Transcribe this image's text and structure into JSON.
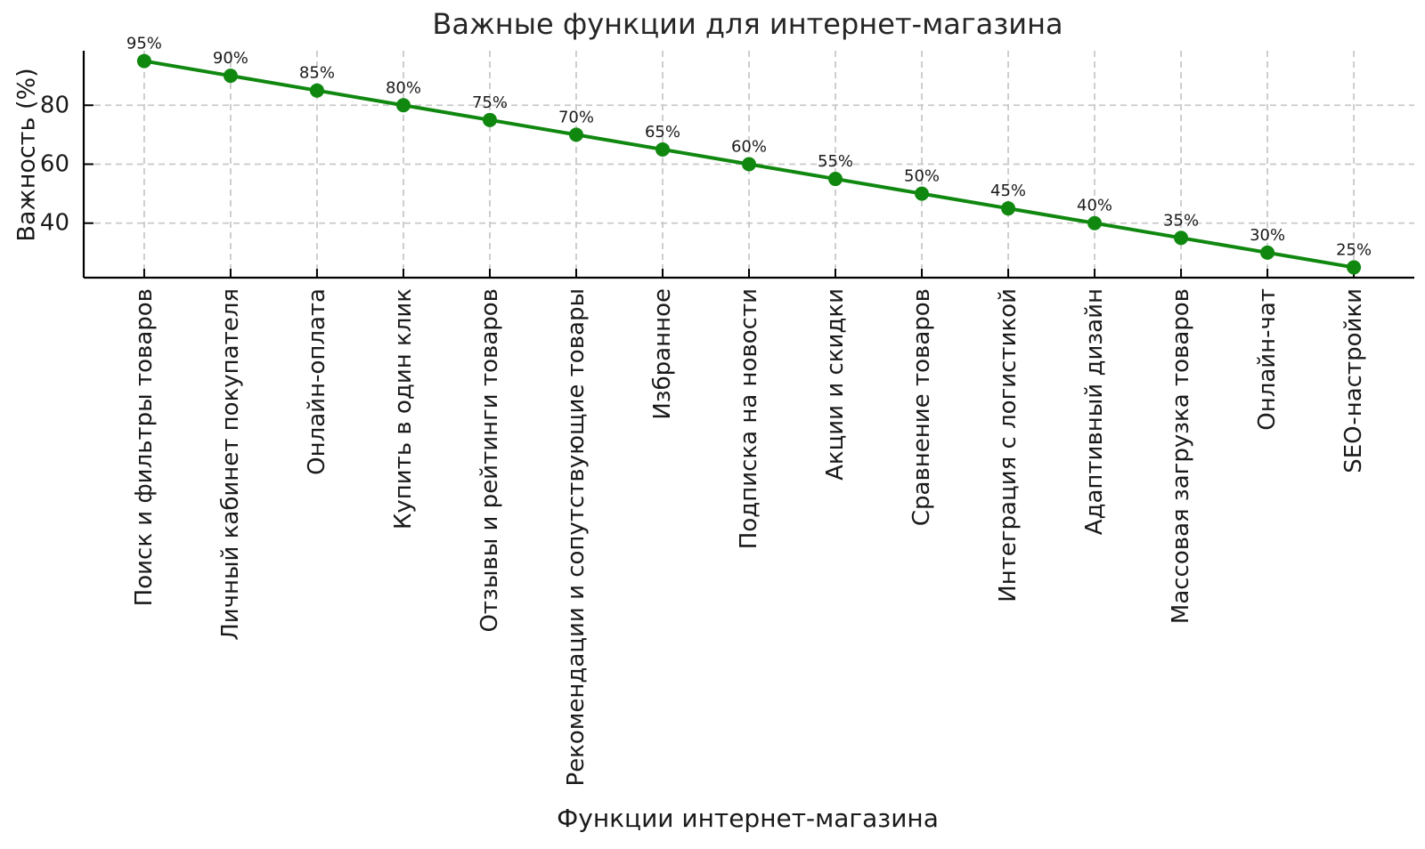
{
  "chart_data": {
    "type": "line",
    "title": "Важные функции для интернет-магазина",
    "xlabel": "Функции интернет-магазина",
    "ylabel": "Важность (%)",
    "categories": [
      "Поиск и фильтры товаров",
      "Личный кабинет покупателя",
      "Онлайн-оплата",
      "Купить в один клик",
      "Отзывы и рейтинги товаров",
      "Рекомендации и сопутствующие товары",
      "Избранное",
      "Подписка на новости",
      "Акции и скидки",
      "Сравнение товаров",
      "Интеграция с логистикой",
      "Адаптивный дизайн",
      "Массовая загрузка товаров",
      "Онлайн-чат",
      "SEO-настройки"
    ],
    "values": [
      95,
      90,
      85,
      80,
      75,
      70,
      65,
      60,
      55,
      50,
      45,
      40,
      35,
      30,
      25
    ],
    "point_labels": [
      "95%",
      "90%",
      "85%",
      "80%",
      "75%",
      "70%",
      "65%",
      "60%",
      "55%",
      "50%",
      "45%",
      "40%",
      "35%",
      "30%",
      "25%"
    ],
    "yticks": [
      40,
      60,
      80
    ],
    "ylim": [
      21.5,
      98.5
    ],
    "grid": true,
    "grid_style": "dashed",
    "legend_position": "none",
    "line_color": "#108810",
    "marker": "circle",
    "text_color": "#1a1a1a",
    "grid_color": "#c9c9c9",
    "axis_color": "#000000",
    "background_color": "#ffffff"
  }
}
